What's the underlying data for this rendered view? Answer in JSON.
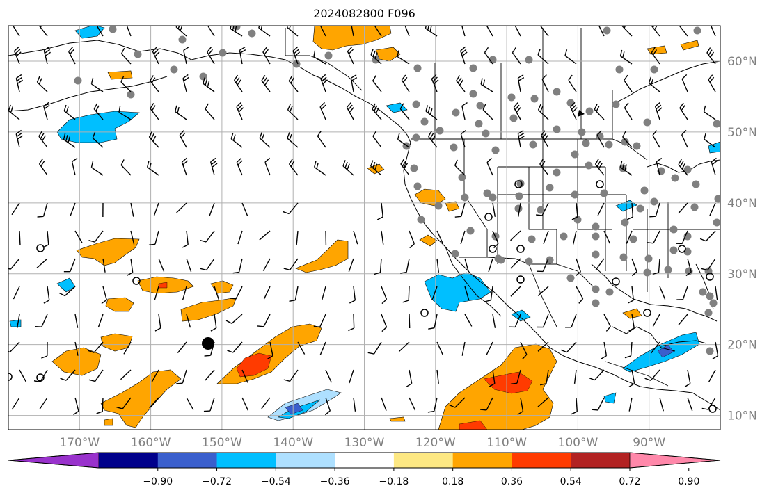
{
  "title": "2024082800 F096",
  "map": {
    "lon_labels": [
      "170°W",
      "160°W",
      "150°W",
      "140°W",
      "130°W",
      "120°W",
      "110°W",
      "100°W",
      "90°W"
    ],
    "lon_values": [
      -170,
      -160,
      -150,
      -140,
      -130,
      -120,
      -110,
      -100,
      -90
    ],
    "lat_labels": [
      "10°N",
      "20°N",
      "30°N",
      "40°N",
      "50°N",
      "60°N"
    ],
    "lat_values": [
      10,
      20,
      30,
      40,
      50,
      60
    ],
    "extent": {
      "lon_min": -180,
      "lon_max": -80,
      "lat_min": 8,
      "lat_max": 65
    },
    "label_color": "#808080",
    "grid_color": "#b0b0b0"
  },
  "colorbar": {
    "ticks": [
      "−0.90",
      "−0.72",
      "−0.54",
      "−0.36",
      "−0.18",
      "0.18",
      "0.36",
      "0.54",
      "0.72",
      "0.90"
    ],
    "colors": [
      "#9932cc",
      "#00008b",
      "#3a5fcd",
      "#00bfff",
      "#aee0ff",
      "#ffffff",
      "#fde883",
      "#ffa500",
      "#ff3b00",
      "#b22222",
      "#ff88aa"
    ]
  },
  "station_colors": {
    "filled": "#808080",
    "open": "#000000",
    "barb": "#000000"
  }
}
